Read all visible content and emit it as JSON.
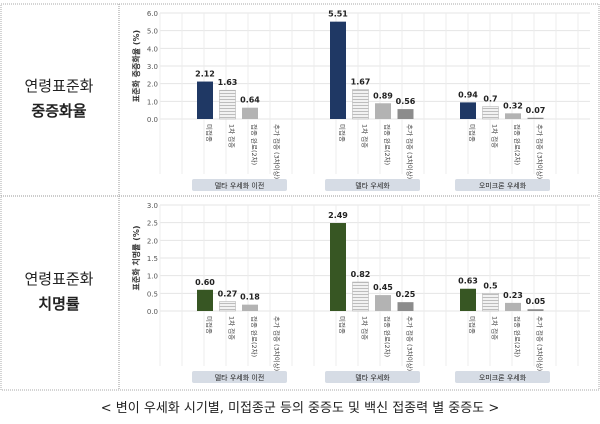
{
  "row_labels": [
    {
      "line1": "연령표준화",
      "line2": "중증화율"
    },
    {
      "line1": "연령표준화",
      "line2": "치명률"
    }
  ],
  "caption": "< 변이 우세화 시기별, 미접종군 등의 중증도 및 백신 접종력 별 중증도 >",
  "colors": {
    "severe_unvaccinated": "#1f3864",
    "death_unvaccinated": "#375623",
    "dose1": "#e6e6e6",
    "complete": "#b3b3b3",
    "booster": "#8c8c8c",
    "group_box": "#d6dce5"
  },
  "chart_data": [
    {
      "type": "bar",
      "ylabel": "표준화 중증화율 (%)",
      "ylim": [
        0,
        6
      ],
      "yticks": [
        "0.0",
        "1.0",
        "2.0",
        "3.0",
        "4.0",
        "5.0",
        "6.0"
      ],
      "grid": true,
      "groups": [
        "델타 우세화 이전",
        "델타 우세화",
        "오미크론 우세화"
      ],
      "categories": [
        "미접종",
        "1차 접종",
        "접종 완료(2차)",
        "추가 접종 (3차이상)"
      ],
      "values": [
        [
          2.12,
          1.63,
          0.64,
          null
        ],
        [
          5.51,
          1.67,
          0.89,
          0.56
        ],
        [
          0.94,
          0.7,
          0.32,
          0.07
        ]
      ],
      "labels": [
        [
          "2.12",
          "1.63",
          "0.64",
          ""
        ],
        [
          "5.51",
          "1.67",
          "0.89",
          "0.56"
        ],
        [
          "0.94",
          "0.7",
          "0.32",
          "0.07"
        ]
      ]
    },
    {
      "type": "bar",
      "ylabel": "표준화 치명률 (%)",
      "ylim": [
        0,
        3
      ],
      "yticks": [
        "0.0",
        "0.5",
        "1.0",
        "1.5",
        "2.0",
        "2.5",
        "3.0"
      ],
      "grid": true,
      "groups": [
        "델타 우세화 이전",
        "델타 우세화",
        "오미크론 우세화"
      ],
      "categories": [
        "미접종",
        "1차 접종",
        "접종 완료(2차)",
        "추가 접종 (3차이상)"
      ],
      "values": [
        [
          0.6,
          0.27,
          0.18,
          null
        ],
        [
          2.49,
          0.82,
          0.45,
          0.25
        ],
        [
          0.63,
          0.5,
          0.23,
          0.05
        ]
      ],
      "labels": [
        [
          "0.60",
          "0.27",
          "0.18",
          ""
        ],
        [
          "2.49",
          "0.82",
          "0.45",
          "0.25"
        ],
        [
          "0.63",
          "0.5",
          "0.23",
          "0.05"
        ]
      ]
    }
  ]
}
